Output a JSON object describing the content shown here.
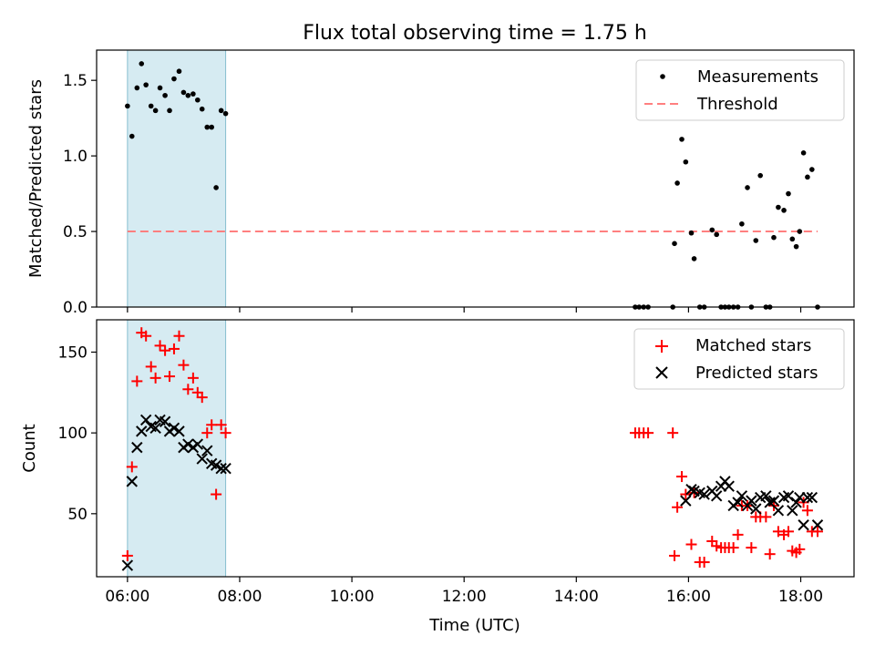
{
  "title": "Flux total observing time = 1.75 h",
  "colors": {
    "shade": "#add8e6",
    "threshold": "#ff7f7f",
    "matched": "#ff0000",
    "predicted": "#000000",
    "measurement": "#000000"
  },
  "chart_data": [
    {
      "type": "scatter",
      "ylabel": "Matched/Predicted stars",
      "ylim": [
        0,
        1.7
      ],
      "yticks": [
        0.0,
        0.5,
        1.0,
        1.5
      ],
      "ytick_labels": [
        "0.0",
        "0.5",
        "1.0",
        "1.5"
      ],
      "xlim": [
        5.45,
        18.95
      ],
      "shaded_span": [
        6.0,
        7.75
      ],
      "threshold": {
        "value": 0.5,
        "x": [
          6.0,
          18.3
        ],
        "name": "Threshold"
      },
      "legend": {
        "position": "top-right",
        "entries": [
          "Measurements",
          "Threshold"
        ]
      },
      "series": [
        {
          "name": "Measurements",
          "x": [
            6.0,
            6.08,
            6.17,
            6.25,
            6.33,
            6.42,
            6.5,
            6.58,
            6.67,
            6.75,
            6.83,
            6.92,
            7.0,
            7.08,
            7.17,
            7.25,
            7.33,
            7.42,
            7.5,
            7.58,
            7.67,
            7.75,
            15.05,
            15.12,
            15.2,
            15.28,
            15.72,
            15.75,
            15.8,
            15.88,
            15.95,
            16.05,
            16.1,
            16.2,
            16.28,
            16.42,
            16.5,
            16.58,
            16.65,
            16.72,
            16.8,
            16.88,
            16.95,
            17.05,
            17.12,
            17.2,
            17.28,
            17.38,
            17.45,
            17.52,
            17.6,
            17.7,
            17.78,
            17.85,
            17.92,
            17.98,
            18.05,
            18.12,
            18.2,
            18.3
          ],
          "y": [
            1.33,
            1.13,
            1.45,
            1.61,
            1.47,
            1.33,
            1.3,
            1.45,
            1.4,
            1.3,
            1.51,
            1.56,
            1.42,
            1.4,
            1.41,
            1.37,
            1.31,
            1.19,
            1.19,
            0.79,
            1.3,
            1.28,
            0.0,
            0.0,
            0.0,
            0.0,
            0.0,
            0.42,
            0.82,
            1.11,
            0.96,
            0.49,
            0.32,
            0.0,
            0.0,
            0.51,
            0.48,
            0.0,
            0.0,
            0.0,
            0.0,
            0.0,
            0.55,
            0.79,
            0.0,
            0.44,
            0.87,
            0.0,
            0.0,
            0.46,
            0.66,
            0.64,
            0.75,
            0.45,
            0.4,
            0.5,
            1.02,
            0.86,
            0.91,
            0.0
          ]
        }
      ]
    },
    {
      "type": "scatter",
      "ylabel": "Count",
      "xlabel": "Time (UTC)",
      "ylim": [
        11,
        170
      ],
      "yticks": [
        50,
        100,
        150
      ],
      "ytick_labels": [
        "50",
        "100",
        "150"
      ],
      "xlim": [
        5.45,
        18.95
      ],
      "xticks": [
        6,
        8,
        10,
        12,
        14,
        16,
        18
      ],
      "xtick_labels": [
        "06:00",
        "08:00",
        "10:00",
        "12:00",
        "14:00",
        "16:00",
        "18:00"
      ],
      "shaded_span": [
        6.0,
        7.75
      ],
      "legend": {
        "position": "top-right",
        "entries": [
          "Matched stars",
          "Predicted stars"
        ]
      },
      "series": [
        {
          "name": "Matched stars",
          "marker": "plus",
          "x": [
            6.0,
            6.08,
            6.17,
            6.25,
            6.33,
            6.42,
            6.5,
            6.58,
            6.67,
            6.75,
            6.83,
            6.92,
            7.0,
            7.08,
            7.17,
            7.25,
            7.33,
            7.42,
            7.5,
            7.58,
            7.67,
            7.75,
            15.05,
            15.12,
            15.2,
            15.28,
            15.72,
            15.75,
            15.8,
            15.88,
            15.95,
            16.05,
            16.1,
            16.2,
            16.28,
            16.42,
            16.5,
            16.58,
            16.65,
            16.72,
            16.8,
            16.88,
            16.95,
            17.05,
            17.12,
            17.2,
            17.28,
            17.38,
            17.45,
            17.52,
            17.6,
            17.7,
            17.78,
            17.85,
            17.92,
            17.98,
            18.05,
            18.12,
            18.2,
            18.3
          ],
          "y": [
            24,
            79,
            132,
            162,
            160,
            141,
            134,
            154,
            151,
            135,
            152,
            160,
            142,
            127,
            134,
            125,
            122,
            100,
            105,
            62,
            105,
            100,
            100,
            100,
            100,
            100,
            100,
            24,
            54,
            73,
            62,
            31,
            63,
            20,
            20,
            33,
            30,
            29,
            29,
            29,
            29,
            37,
            55,
            55,
            29,
            48,
            48,
            48,
            25,
            55,
            39,
            37,
            39,
            27,
            26,
            28,
            57,
            52,
            39,
            39
          ]
        },
        {
          "name": "Predicted stars",
          "marker": "x",
          "x": [
            6.0,
            6.08,
            6.17,
            6.25,
            6.33,
            6.42,
            6.5,
            6.58,
            6.67,
            6.75,
            6.83,
            6.92,
            7.0,
            7.08,
            7.17,
            7.25,
            7.33,
            7.42,
            7.5,
            7.58,
            7.67,
            7.75,
            15.95,
            16.05,
            16.1,
            16.2,
            16.28,
            16.42,
            16.5,
            16.58,
            16.65,
            16.72,
            16.8,
            16.88,
            16.95,
            17.05,
            17.12,
            17.2,
            17.28,
            17.38,
            17.45,
            17.52,
            17.6,
            17.7,
            17.78,
            17.85,
            17.92,
            17.98,
            18.05,
            18.12,
            18.2,
            18.3
          ],
          "y": [
            18,
            70,
            91,
            101,
            108,
            104,
            103,
            108,
            107,
            101,
            103,
            101,
            91,
            93,
            91,
            93,
            84,
            89,
            81,
            80,
            78,
            78,
            58,
            65,
            64,
            63,
            62,
            64,
            61,
            67,
            70,
            67,
            55,
            57,
            61,
            55,
            58,
            53,
            60,
            61,
            57,
            58,
            52,
            60,
            61,
            52,
            57,
            60,
            43,
            60,
            60,
            43
          ]
        }
      ]
    }
  ]
}
